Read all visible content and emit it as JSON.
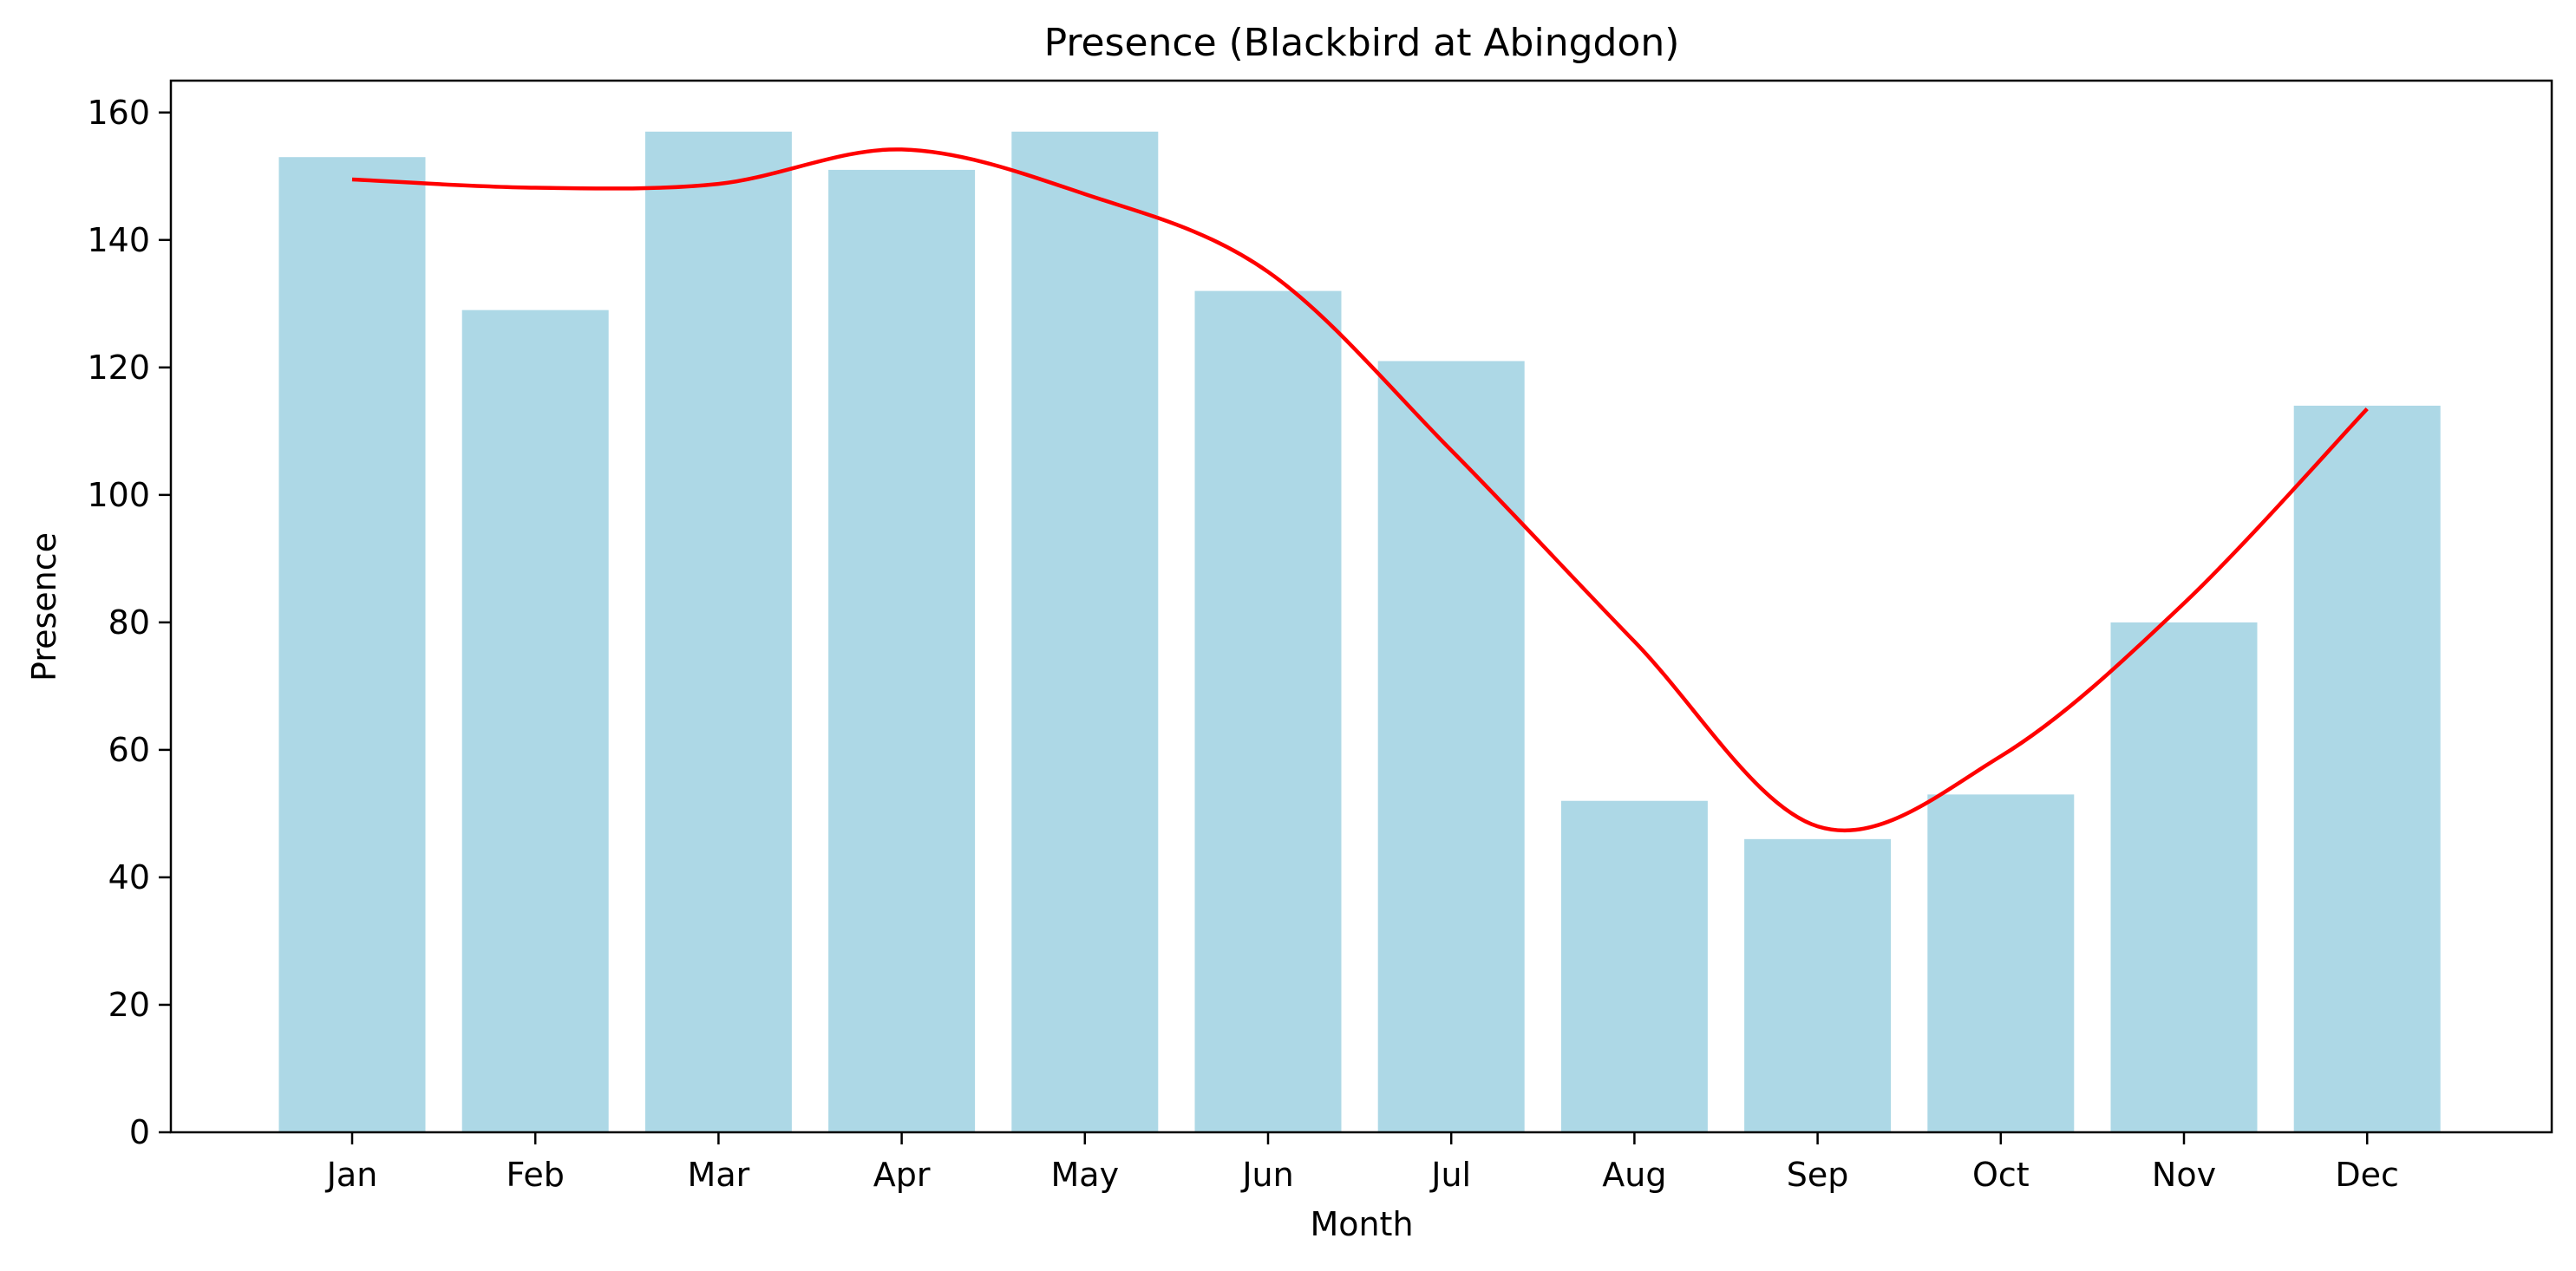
{
  "chart_data": {
    "type": "bar",
    "title": "Presence (Blackbird at Abingdon)",
    "xlabel": "Month",
    "ylabel": "Presence",
    "categories": [
      "Jan",
      "Feb",
      "Mar",
      "Apr",
      "May",
      "Jun",
      "Jul",
      "Aug",
      "Sep",
      "Oct",
      "Nov",
      "Dec"
    ],
    "values": [
      153,
      129,
      157,
      151,
      157,
      132,
      121,
      52,
      46,
      53,
      80,
      114
    ],
    "trend_line": [
      149.5,
      148.2,
      148.8,
      154.2,
      147.2,
      135,
      107,
      77,
      48,
      59,
      83,
      113.5
    ],
    "ylim": [
      0,
      165
    ],
    "yticks": [
      0,
      20,
      40,
      60,
      80,
      100,
      120,
      140,
      160
    ],
    "grid": false,
    "colors": {
      "bar": "#add8e6",
      "line": "#ff0000"
    }
  }
}
